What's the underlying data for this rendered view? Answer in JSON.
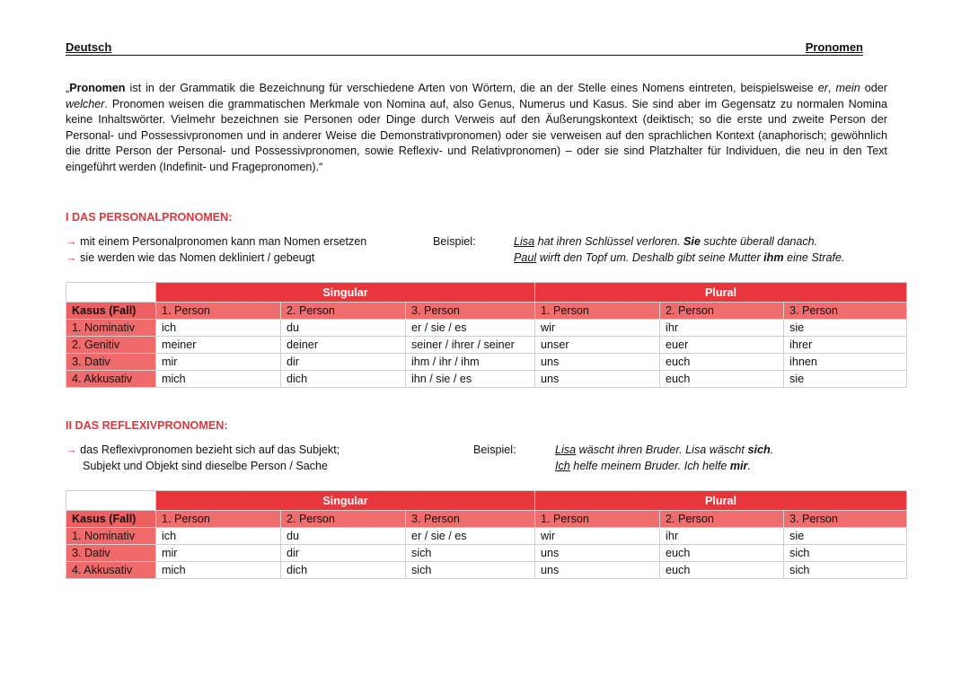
{
  "header": {
    "left": "Deutsch",
    "right": "Pronomen"
  },
  "intro": [
    {
      "t": "„",
      "s": "n"
    },
    {
      "t": "Pronomen",
      "s": "b"
    },
    {
      "t": " ist in der Grammatik die Bezeichnung für verschiedene Arten von Wörtern, die an der Stelle eines Nomens eintreten, beispielsweise ",
      "s": "n"
    },
    {
      "t": "er",
      "s": "i"
    },
    {
      "t": ", ",
      "s": "n"
    },
    {
      "t": "mein",
      "s": "i"
    },
    {
      "t": " oder ",
      "s": "n"
    },
    {
      "t": "welcher",
      "s": "i"
    },
    {
      "t": ". Pronomen weisen die grammatischen Merkmale von Nomina auf, also Genus, Numerus und Kasus. Sie sind aber im Gegensatz zu normalen Nomina keine Inhaltswörter. Vielmehr bezeichnen sie Personen oder Dinge durch Verweis auf den Äußerungskontext (deiktisch; so die erste und zweite Person der Personal- und Possessivpronomen und in anderer Weise die Demonstrativpronomen) oder sie verweisen auf den sprachlichen Kontext (anaphorisch; gewöhnlich die dritte Person der Personal- und Possessivpronomen, sowie Reflexiv- und Relativpronomen) – oder sie sind Platzhalter für Individuen, die neu in den Text eingeführt werden (Indefinit- und Fragepronomen).“",
      "s": "n"
    }
  ],
  "s1": {
    "title": "I DAS PERSONALPRONOMEN:",
    "points": [
      "mit einem Personalpronomen kann man Nomen ersetzen",
      "sie werden wie das Nomen dekliniert / gebeugt"
    ],
    "beispiel": "Beispiel:",
    "ex1": {
      "u": "Lisa",
      "a": " hat ihren Schlüssel verloren. ",
      "b": "Sie",
      "c": " suchte überall danach."
    },
    "ex2": {
      "u": "Paul",
      "a": " wirft den Topf um. Deshalb gibt seine Mutter ",
      "b": "ihm",
      "c": " eine Strafe."
    },
    "table": {
      "singular": "Singular",
      "plural": "Plural",
      "head": [
        "Kasus (Fall)",
        "1. Person",
        "2. Person",
        "3. Person",
        "1. Person",
        "2. Person",
        "3. Person"
      ],
      "rows": [
        [
          "1. Nominativ",
          "ich",
          "du",
          "er / sie / es",
          "wir",
          "ihr",
          "sie"
        ],
        [
          "2. Genitiv",
          "meiner",
          "deiner",
          "seiner / ihrer / seiner",
          "unser",
          "euer",
          "ihrer"
        ],
        [
          "3. Dativ",
          "mir",
          "dir",
          "ihm / ihr / ihm",
          "uns",
          "euch",
          "ihnen"
        ],
        [
          "4. Akkusativ",
          "mich",
          "dich",
          "ihn / sie / es",
          "uns",
          "euch",
          "sie"
        ]
      ]
    }
  },
  "s2": {
    "title": "II DAS REFLEXIVPRONOMEN:",
    "points": [
      "das Reflexivpronomen bezieht sich auf das Subjekt;",
      "Subjekt und Objekt sind dieselbe Person / Sache"
    ],
    "beispiel": "Beispiel:",
    "ex1": {
      "u": "Lisa",
      "a": " wäscht ihren Bruder. Lisa wäscht ",
      "b": "sich",
      "c": "."
    },
    "ex2": {
      "u": "Ich",
      "a": " helfe meinem Bruder. Ich helfe ",
      "b": "mir",
      "c": "."
    },
    "table": {
      "singular": "Singular",
      "plural": "Plural",
      "head": [
        "Kasus (Fall)",
        "1. Person",
        "2. Person",
        "3. Person",
        "1. Person",
        "2. Person",
        "3. Person"
      ],
      "rows": [
        [
          "1. Nominativ",
          "ich",
          "du",
          "er / sie / es",
          "wir",
          "ihr",
          "sie"
        ],
        [
          "3. Dativ",
          "mir",
          "dir",
          "sich",
          "uns",
          "euch",
          "sich"
        ],
        [
          "4. Akkusativ",
          "mich",
          "dich",
          "sich",
          "uns",
          "euch",
          "sich"
        ]
      ]
    }
  },
  "colors": {
    "accent": "#e8363c",
    "subheader": "#f06d6d"
  },
  "arrow": "→"
}
